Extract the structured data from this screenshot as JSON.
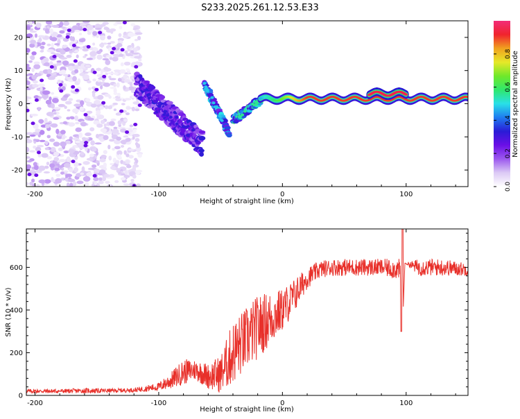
{
  "title": "S233.2025.261.12.53.E33",
  "chart_data": [
    {
      "type": "heatmap",
      "xlabel": "Height of straight line (km)",
      "ylabel": "Frequency (Hz)",
      "xlim": [
        -207,
        150
      ],
      "ylim": [
        -25,
        25
      ],
      "x_ticks": [
        -200,
        -100,
        0,
        100
      ],
      "y_ticks": [
        -20,
        -10,
        0,
        10,
        20
      ],
      "colorbar": {
        "label": "Normalized spectral amplitude",
        "range": [
          0,
          1
        ],
        "ticks": [
          0.0,
          0.2,
          0.4,
          0.6,
          0.8
        ],
        "tick_labels": [
          "0.0",
          "0.2",
          "0.4",
          "0.6",
          "0.8"
        ],
        "colormap": [
          "#ffffff",
          "#dccaf5",
          "#9c59ee",
          "#6b0fe6",
          "#2a1cd6",
          "#1f7bf0",
          "#29e0e8",
          "#2fe86d",
          "#6fe82a",
          "#e6e829",
          "#f0a21f",
          "#f0242d",
          "#f22c78"
        ]
      },
      "features": [
        {
          "name": "scattered low-amplitude noise",
          "x_range": [
            -207,
            -115
          ],
          "y_range": [
            -25,
            25
          ],
          "amplitude": 0.1
        },
        {
          "name": "descending diffuse band",
          "x_from": -118,
          "x_to": -65,
          "y_from": 6,
          "y_to": -12,
          "amplitude": 0.2
        },
        {
          "name": "descending narrow streak",
          "x_from": -63,
          "x_to": -43,
          "y_from": 6,
          "y_to": -9,
          "amplitude": 0.3
        },
        {
          "name": "rising branch",
          "x_from": -40,
          "x_to": -18,
          "y_from": -5,
          "y_to": 1,
          "amplitude": 0.35
        },
        {
          "name": "stable carrier line",
          "x_from": -18,
          "x_to": 150,
          "y": 1.5,
          "amplitude": 0.9
        },
        {
          "name": "carrier bump",
          "x_from": 70,
          "x_to": 100,
          "y": 3,
          "amplitude": 0.95
        }
      ]
    },
    {
      "type": "line",
      "xlabel": "Height of straight line (km)",
      "ylabel": "SNR (10 * v/v)",
      "xlim": [
        -207,
        150
      ],
      "ylim": [
        0,
        780
      ],
      "x_ticks": [
        -200,
        -100,
        0,
        100
      ],
      "y_ticks": [
        0,
        200,
        400,
        600
      ],
      "series": [
        {
          "name": "SNR",
          "color": "#e8302a",
          "x": [
            -207,
            -180,
            -160,
            -140,
            -120,
            -100,
            -90,
            -80,
            -70,
            -60,
            -50,
            -40,
            -30,
            -20,
            -10,
            0,
            10,
            20,
            30,
            40,
            60,
            80,
            95,
            97,
            99,
            110,
            130,
            150
          ],
          "y": [
            20,
            20,
            22,
            22,
            25,
            40,
            70,
            110,
            120,
            90,
            100,
            200,
            260,
            320,
            360,
            400,
            470,
            550,
            590,
            600,
            600,
            600,
            590,
            300,
            620,
            600,
            600,
            590
          ],
          "spread": [
            10,
            10,
            12,
            10,
            10,
            20,
            40,
            60,
            50,
            60,
            90,
            150,
            150,
            150,
            130,
            100,
            80,
            50,
            40,
            40,
            40,
            40,
            50,
            0,
            0,
            40,
            40,
            30
          ],
          "spikes": [
            {
              "x": 97,
              "y": 780
            },
            {
              "x": 97,
              "y": 300
            }
          ]
        }
      ]
    }
  ]
}
